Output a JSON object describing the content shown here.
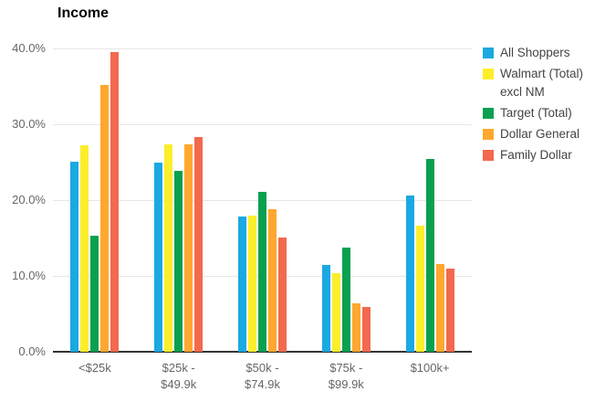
{
  "chart_data": {
    "type": "bar",
    "title": "Income",
    "categories": [
      "<$25k",
      "$25k -\n$49.9k",
      "$50k -\n$74.9k",
      "$75k -\n$99.9k",
      "$100k+"
    ],
    "series": [
      {
        "name": "All Shoppers",
        "color": "#1BA9E1",
        "values": [
          25.1,
          24.9,
          17.8,
          11.5,
          20.6
        ]
      },
      {
        "name": "Walmart (Total) excl NM",
        "color": "#FCEE2B",
        "values": [
          27.2,
          27.4,
          17.9,
          10.4,
          16.6
        ]
      },
      {
        "name": "Target (Total)",
        "color": "#0AA04F",
        "values": [
          15.3,
          23.8,
          21.1,
          13.7,
          25.4
        ]
      },
      {
        "name": "Dollar General",
        "color": "#FFA72F",
        "values": [
          35.2,
          27.4,
          18.8,
          6.4,
          11.6
        ]
      },
      {
        "name": "Family Dollar",
        "color": "#F2694F",
        "values": [
          39.5,
          28.3,
          15.0,
          5.9,
          11.0
        ]
      }
    ],
    "xlabel": "",
    "ylabel": "",
    "ylim": [
      0,
      40
    ],
    "yticks": [
      {
        "value": 40,
        "label": "40.0%"
      },
      {
        "value": 30,
        "label": "30.0%"
      },
      {
        "value": 20,
        "label": "20.0%"
      },
      {
        "value": 10,
        "label": "10.0%"
      },
      {
        "value": 0,
        "label": "0.0%"
      }
    ],
    "grid": true,
    "legend_position": "right"
  },
  "colors": {
    "gridline": "#e6e6e6",
    "axis_line": "#333333",
    "tick_text": "#666666",
    "legend_text": "#444444",
    "title_text": "#000000",
    "background": "#ffffff"
  }
}
